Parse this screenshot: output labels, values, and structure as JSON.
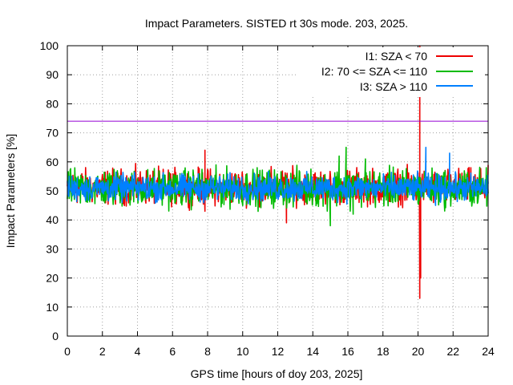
{
  "chart_data": {
    "type": "line",
    "title": "Impact Parameters. SISTED rt 30s mode. 203, 2025.",
    "xlabel": "GPS time [hours of doy 203, 2025]",
    "ylabel": "Impact Parameters [%]",
    "xlim": [
      0,
      24
    ],
    "ylim": [
      0,
      100
    ],
    "x_ticks": [
      0,
      2,
      4,
      6,
      8,
      10,
      12,
      14,
      16,
      18,
      20,
      22,
      24
    ],
    "y_ticks": [
      0,
      10,
      20,
      30,
      40,
      50,
      60,
      70,
      80,
      90,
      100
    ],
    "grid": true,
    "legend_position": "top-right",
    "threshold": {
      "value": 74,
      "color": "#9400d3"
    },
    "series": [
      {
        "name": "I1: SZA < 70",
        "color": "#ee0000",
        "mean": 51,
        "typical_range": [
          45,
          58
        ],
        "notable_points": [
          {
            "x": 7.85,
            "y": 64
          },
          {
            "x": 7.85,
            "y": 43
          },
          {
            "x": 12.5,
            "y": 39
          },
          {
            "x": 20.1,
            "y": 100
          },
          {
            "x": 20.1,
            "y": 13
          },
          {
            "x": 20.15,
            "y": 20
          }
        ]
      },
      {
        "name": "I2: 70 <= SZA <= 110",
        "color": "#00bb00",
        "mean": 51,
        "typical_range": [
          44,
          58
        ],
        "notable_points": [
          {
            "x": 15.0,
            "y": 38
          },
          {
            "x": 15.5,
            "y": 62
          },
          {
            "x": 15.9,
            "y": 65
          },
          {
            "x": 16.3,
            "y": 42
          },
          {
            "x": 17.0,
            "y": 61
          }
        ]
      },
      {
        "name": "I3: SZA > 110",
        "color": "#0080ff",
        "mean": 51,
        "typical_range": [
          46,
          56
        ],
        "notable_points": [
          {
            "x": 20.45,
            "y": 65
          },
          {
            "x": 21.0,
            "y": 45
          },
          {
            "x": 21.8,
            "y": 63
          }
        ]
      }
    ]
  }
}
